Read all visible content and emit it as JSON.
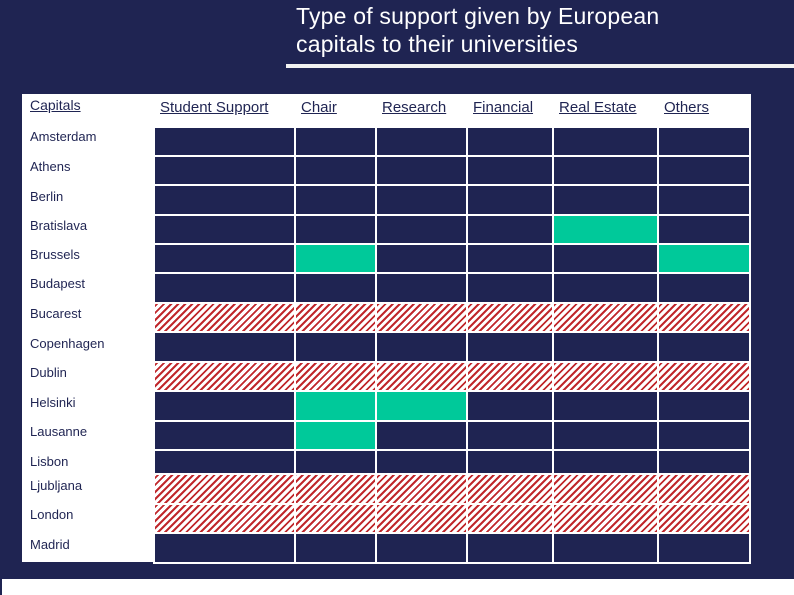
{
  "title": "Type of support given by European\ncapitals to their universities",
  "columns": [
    "Capitals",
    "Student Support",
    "Chair",
    "Research",
    "Financial",
    "Real Estate",
    "Others"
  ],
  "rows": [
    {
      "city": "Amsterdam",
      "cells": [
        "none",
        "none",
        "none",
        "none",
        "none",
        "none"
      ]
    },
    {
      "city": "Athens",
      "cells": [
        "none",
        "none",
        "none",
        "none",
        "none",
        "none"
      ]
    },
    {
      "city": "Berlin",
      "cells": [
        "none",
        "none",
        "none",
        "none",
        "none",
        "none"
      ]
    },
    {
      "city": "Bratislava",
      "cells": [
        "none",
        "none",
        "none",
        "none",
        "green",
        "none"
      ]
    },
    {
      "city": "Brussels",
      "cells": [
        "none",
        "green",
        "none",
        "none",
        "none",
        "green"
      ]
    },
    {
      "city": "Budapest",
      "cells": [
        "none",
        "none",
        "none",
        "none",
        "none",
        "none"
      ]
    },
    {
      "city": "Bucarest",
      "cells": [
        "hatch",
        "hatch",
        "hatch",
        "hatch",
        "hatch",
        "hatch"
      ]
    },
    {
      "city": "Copenhagen",
      "cells": [
        "none",
        "none",
        "none",
        "none",
        "none",
        "none"
      ]
    },
    {
      "city": "Dublin",
      "cells": [
        "hatch",
        "hatch",
        "hatch",
        "hatch",
        "hatch",
        "hatch"
      ]
    },
    {
      "city": "Helsinki",
      "cells": [
        "none",
        "green",
        "green",
        "none",
        "none",
        "none"
      ]
    },
    {
      "city": "Lausanne",
      "cells": [
        "none",
        "green",
        "none",
        "none",
        "none",
        "none"
      ]
    },
    {
      "city": "Lisbon",
      "cells": [
        "none",
        "none",
        "none",
        "none",
        "none",
        "none"
      ]
    },
    {
      "city": "Ljubljana",
      "cells": [
        "hatch",
        "hatch",
        "hatch",
        "hatch",
        "hatch",
        "hatch"
      ]
    },
    {
      "city": "London",
      "cells": [
        "hatch",
        "hatch",
        "hatch",
        "hatch",
        "hatch",
        "hatch"
      ]
    },
    {
      "city": "Madrid",
      "cells": [
        "none",
        "none",
        "none",
        "none",
        "none",
        "none"
      ]
    }
  ],
  "colors": {
    "background": "#1f2452",
    "supported": "#00c99a",
    "hatch_red": "#c0282c",
    "cell_border": "#ffffff"
  }
}
